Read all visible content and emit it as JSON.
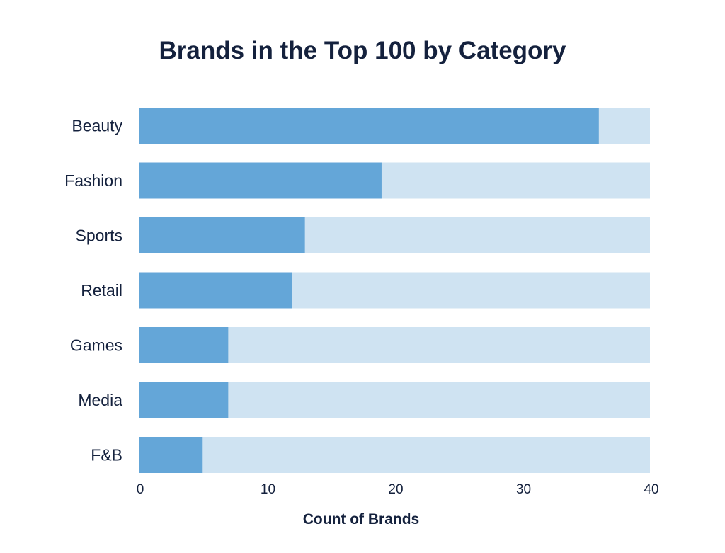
{
  "chart_data": {
    "type": "bar",
    "orientation": "horizontal",
    "title": "Brands in the Top 100 by Category",
    "xlabel": "Count of Brands",
    "ylabel": "",
    "categories": [
      "Beauty",
      "Fashion",
      "Sports",
      "Retail",
      "Games",
      "Media",
      "F&B"
    ],
    "values": [
      36,
      19,
      13,
      12,
      7,
      7,
      5
    ],
    "xlim": [
      0,
      40
    ],
    "xticks": [
      "0",
      "10",
      "20",
      "30",
      "40"
    ],
    "grid": false,
    "legend": "none",
    "colors": {
      "bar": "#64a6d8",
      "track": "#cfe3f2",
      "text": "#14213d"
    }
  }
}
